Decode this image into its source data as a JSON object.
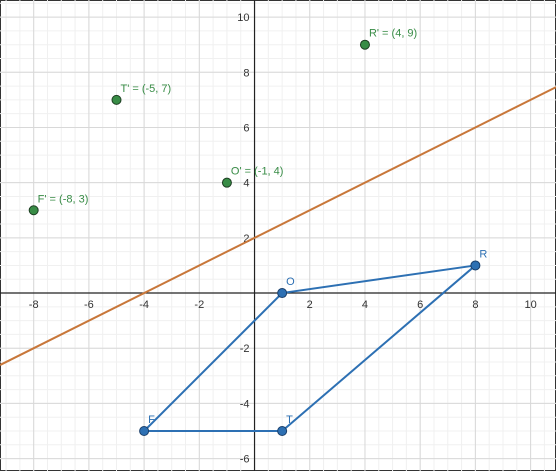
{
  "chart_data": {
    "type": "scatter",
    "xlim": [
      -9.22,
      10.92
    ],
    "ylim": [
      -6.45,
      10.62
    ],
    "xticks": [
      -8,
      -6,
      -4,
      -2,
      2,
      4,
      6,
      8,
      10
    ],
    "yticks": [
      -6,
      -4,
      -2,
      2,
      4,
      6,
      8,
      10
    ],
    "grid": true,
    "series": [
      {
        "type": "line",
        "color": "#c8773a",
        "x": [
          -9.22,
          10.92
        ],
        "values": [
          -2.61,
          7.46
        ]
      },
      {
        "type": "scatter",
        "color": "#388c46",
        "x": [
          -8,
          -5,
          -1,
          4
        ],
        "values": [
          3,
          7,
          4,
          9
        ],
        "labels": [
          "F' = (-8, 3)",
          "T' = (-5, 7)",
          "O' = (-1, 4)",
          "R' = (4, 9)"
        ]
      },
      {
        "type": "polygon",
        "color": "#2d70b3",
        "x": [
          -4,
          1,
          8,
          1
        ],
        "values": [
          -5,
          -5,
          1,
          0
        ],
        "labels": [
          "F",
          "T",
          "R",
          "O"
        ]
      }
    ]
  }
}
